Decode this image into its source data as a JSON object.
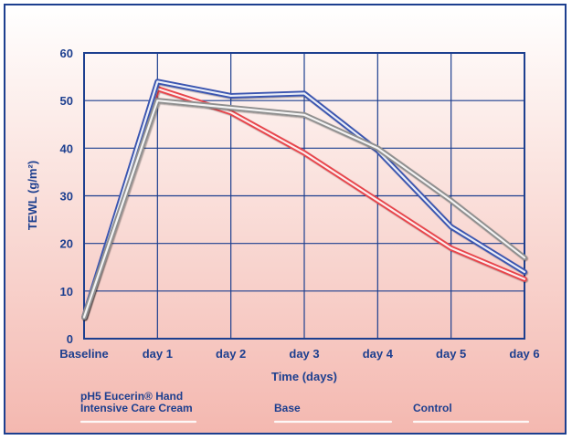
{
  "chart_data": {
    "type": "line",
    "xlabel": "Time (days)",
    "ylabel": "TEWL (g/m²)",
    "categories": [
      "Baseline",
      "day 1",
      "day 2",
      "day 3",
      "day 4",
      "day 5",
      "day 6"
    ],
    "ylim": [
      0,
      60
    ],
    "yticks": [
      0,
      10,
      20,
      30,
      40,
      50,
      60
    ],
    "grid": true,
    "legend_position": "bottom",
    "series": [
      {
        "name_lines": [
          "pH5 Eucerin® Hand",
          "Intensive Care Cream"
        ],
        "color": "#e8454c",
        "values": [
          4.5,
          52.5,
          47.5,
          39,
          29,
          19,
          12.5
        ]
      },
      {
        "name_lines": [
          "Base"
        ],
        "color": "#3a55b0",
        "values": [
          4.5,
          54,
          51,
          51.5,
          39.5,
          23.5,
          14
        ]
      },
      {
        "name_lines": [
          "Control"
        ],
        "color": "#8f8f8f",
        "values": [
          4.5,
          50,
          48.5,
          47,
          40,
          29,
          17
        ]
      }
    ]
  }
}
